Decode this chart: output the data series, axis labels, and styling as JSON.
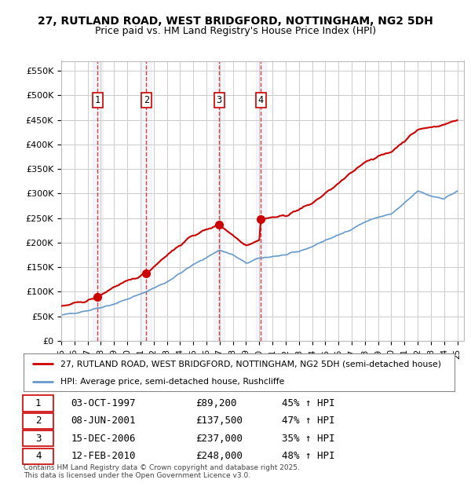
{
  "title_line1": "27, RUTLAND ROAD, WEST BRIDGFORD, NOTTINGHAM, NG2 5DH",
  "title_line2": "Price paid vs. HM Land Registry's House Price Index (HPI)",
  "ylim": [
    0,
    570000
  ],
  "yticks": [
    0,
    50000,
    100000,
    150000,
    200000,
    250000,
    300000,
    350000,
    400000,
    450000,
    500000,
    550000
  ],
  "ytick_labels": [
    "£0",
    "£50K",
    "£100K",
    "£150K",
    "£200K",
    "£250K",
    "£300K",
    "£350K",
    "£400K",
    "£450K",
    "£500K",
    "£550K"
  ],
  "xlim_start": 1995.0,
  "xlim_end": 2025.5,
  "xticks": [
    1995,
    1996,
    1997,
    1998,
    1999,
    2000,
    2001,
    2002,
    2003,
    2004,
    2005,
    2006,
    2007,
    2008,
    2009,
    2010,
    2011,
    2012,
    2013,
    2014,
    2015,
    2016,
    2017,
    2018,
    2019,
    2020,
    2021,
    2022,
    2023,
    2024,
    2025
  ],
  "sale_dates": [
    1997.75,
    2001.44,
    2006.96,
    2010.12
  ],
  "sale_prices": [
    89200,
    137500,
    237000,
    248000
  ],
  "sale_labels": [
    "1",
    "2",
    "3",
    "4"
  ],
  "hpi_color": "#6699cc",
  "price_color": "#cc0000",
  "sale_marker_color": "#cc0000",
  "legend_line1": "27, RUTLAND ROAD, WEST BRIDGFORD, NOTTINGHAM, NG2 5DH (semi-detached house)",
  "legend_line2": "HPI: Average price, semi-detached house, Rushcliffe",
  "table_data": [
    [
      "1",
      "03-OCT-1997",
      "£89,200",
      "45% ↑ HPI"
    ],
    [
      "2",
      "08-JUN-2001",
      "£137,500",
      "47% ↑ HPI"
    ],
    [
      "3",
      "15-DEC-2006",
      "£237,000",
      "35% ↑ HPI"
    ],
    [
      "4",
      "12-FEB-2010",
      "£248,000",
      "48% ↑ HPI"
    ]
  ],
  "footer": "Contains HM Land Registry data © Crown copyright and database right 2025.\nThis data is licensed under the Open Government Licence v3.0.",
  "background_color": "#ffffff",
  "grid_color": "#cccccc",
  "hpi_anchors_t": [
    1995,
    1997,
    1999,
    2001,
    2003,
    2005,
    2007,
    2008,
    2009,
    2010,
    2011,
    2012,
    2013,
    2014,
    2015,
    2016,
    2017,
    2018,
    2019,
    2020,
    2021,
    2022,
    2023,
    2024,
    2025
  ],
  "hpi_anchors_v": [
    52000,
    62000,
    75000,
    95000,
    120000,
    155000,
    185000,
    175000,
    158000,
    168000,
    172000,
    175000,
    182000,
    192000,
    205000,
    215000,
    228000,
    242000,
    252000,
    258000,
    280000,
    305000,
    295000,
    290000,
    305000
  ],
  "price_anchors_t": [
    1995,
    1997,
    1997.75,
    1999,
    2001,
    2001.44,
    2003,
    2005,
    2006.96,
    2008,
    2009,
    2010,
    2010.12,
    2012,
    2014,
    2016,
    2018,
    2020,
    2022,
    2024,
    2025
  ],
  "price_anchors_v": [
    70000,
    82000,
    89200,
    110000,
    132000,
    137500,
    175000,
    215000,
    237000,
    215000,
    195000,
    205000,
    248000,
    255000,
    280000,
    320000,
    365000,
    385000,
    430000,
    440000,
    450000
  ],
  "noise_seed": 42
}
